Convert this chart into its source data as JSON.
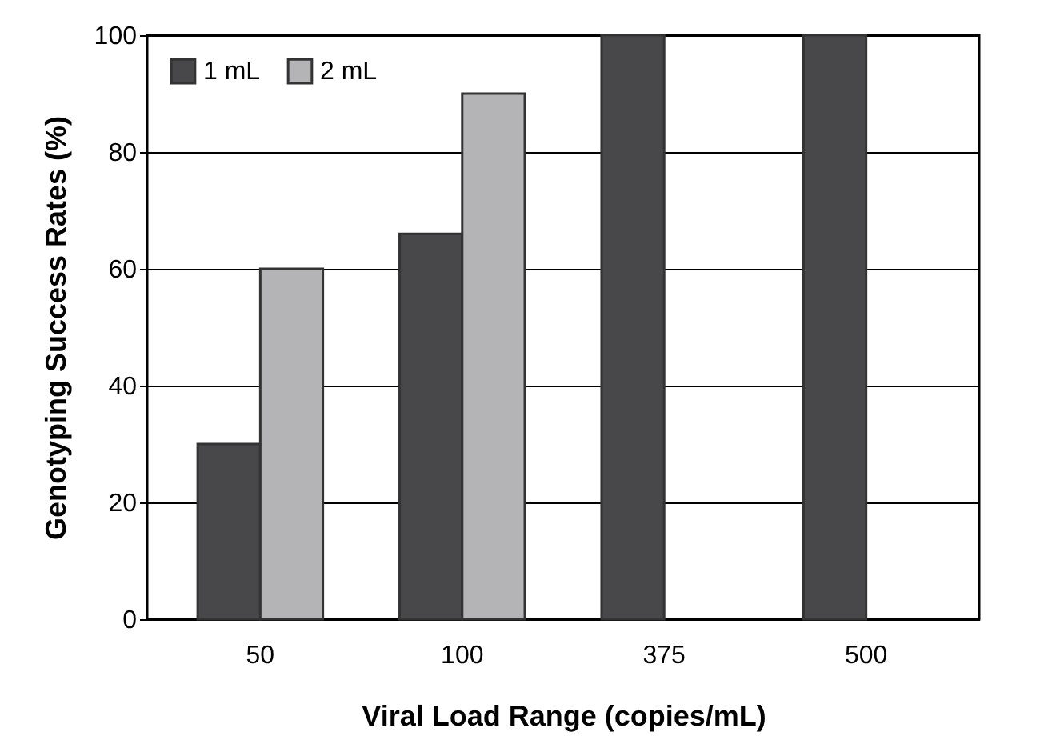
{
  "chart_data": {
    "type": "bar",
    "xlabel": "Viral Load Range (copies/mL)",
    "ylabel": "Genotyping Success Rates (%)",
    "categories": [
      "50",
      "100",
      "375",
      "500"
    ],
    "series": [
      {
        "name": "1 mL",
        "color": "#48484a",
        "values": [
          30,
          66,
          100,
          100
        ]
      },
      {
        "name": "2 mL",
        "color": "#b4b4b7",
        "values": [
          60,
          90,
          null,
          null
        ]
      }
    ],
    "ylim": [
      0,
      100
    ],
    "yticks": [
      0,
      20,
      40,
      60,
      80,
      100
    ],
    "grid": "y",
    "legend": "top left"
  }
}
